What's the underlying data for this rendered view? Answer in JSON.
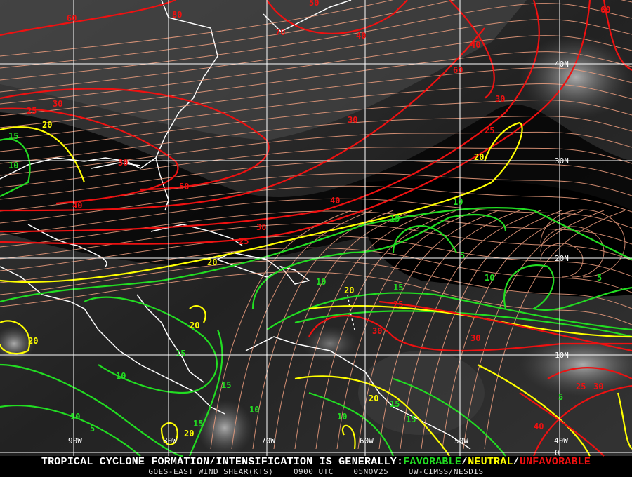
{
  "title_line": {
    "prefix": "TROPICAL CYCLONE FORMATION/INTENSIFICATION IS GENERALLY:",
    "favorable": "FAVORABLE",
    "sep1": "/",
    "neutral": "NEUTRAL",
    "sep2": "/",
    "unfavorable": "UNFAVORABLE"
  },
  "subtitle_line": {
    "product": "GOES-EAST WIND SHEAR(KTS)",
    "time": "0900 UTC",
    "date": "05NOV25",
    "credit": "UW-CIMSS/NESDIS"
  },
  "longitude_labels": [
    "90W",
    "80W",
    "70W",
    "60W",
    "50W",
    "40W"
  ],
  "latitude_labels": [
    "40N",
    "30N",
    "20N",
    "10N",
    "0"
  ],
  "colors": {
    "favorable": "#22dd22",
    "neutral": "#ffff00",
    "unfavorable": "#ee1111",
    "streamlines": "#f0a080",
    "coastline": "#ffffff",
    "grid": "#ffffff"
  },
  "contour_labels": [
    {
      "value": "80",
      "category": "unfavorable"
    },
    {
      "value": "60",
      "category": "unfavorable"
    },
    {
      "value": "70",
      "category": "unfavorable"
    },
    {
      "value": "40",
      "category": "unfavorable"
    },
    {
      "value": "40",
      "category": "unfavorable"
    },
    {
      "value": "50",
      "category": "unfavorable"
    },
    {
      "value": "60",
      "category": "unfavorable"
    },
    {
      "value": "60",
      "category": "unfavorable"
    },
    {
      "value": "30",
      "category": "unfavorable"
    },
    {
      "value": "25",
      "category": "unfavorable"
    },
    {
      "value": "20",
      "category": "neutral"
    },
    {
      "value": "15",
      "category": "favorable"
    },
    {
      "value": "10",
      "category": "favorable"
    },
    {
      "value": "30",
      "category": "unfavorable"
    },
    {
      "value": "50",
      "category": "unfavorable"
    },
    {
      "value": "40",
      "category": "unfavorable"
    },
    {
      "value": "40",
      "category": "unfavorable"
    },
    {
      "value": "30",
      "category": "unfavorable"
    },
    {
      "value": "25",
      "category": "unfavorable"
    },
    {
      "value": "20",
      "category": "neutral"
    },
    {
      "value": "30",
      "category": "unfavorable"
    },
    {
      "value": "30",
      "category": "unfavorable"
    },
    {
      "value": "25",
      "category": "unfavorable"
    },
    {
      "value": "20",
      "category": "neutral"
    },
    {
      "value": "10",
      "category": "favorable"
    },
    {
      "value": "15",
      "category": "favorable"
    },
    {
      "value": "5",
      "category": "favorable"
    },
    {
      "value": "10",
      "category": "favorable"
    },
    {
      "value": "5",
      "category": "favorable"
    },
    {
      "value": "10",
      "category": "favorable"
    },
    {
      "value": "20",
      "category": "neutral"
    },
    {
      "value": "15",
      "category": "favorable"
    },
    {
      "value": "25",
      "category": "unfavorable"
    },
    {
      "value": "30",
      "category": "unfavorable"
    },
    {
      "value": "30",
      "category": "unfavorable"
    },
    {
      "value": "5",
      "category": "favorable"
    },
    {
      "value": "20",
      "category": "neutral"
    },
    {
      "value": "20",
      "category": "neutral"
    },
    {
      "value": "10",
      "category": "favorable"
    },
    {
      "value": "15",
      "category": "favorable"
    },
    {
      "value": "15",
      "category": "favorable"
    },
    {
      "value": "10",
      "category": "favorable"
    },
    {
      "value": "15",
      "category": "favorable"
    },
    {
      "value": "20",
      "category": "neutral"
    },
    {
      "value": "15",
      "category": "favorable"
    },
    {
      "value": "10",
      "category": "favorable"
    },
    {
      "value": "15",
      "category": "favorable"
    },
    {
      "value": "10",
      "category": "favorable"
    },
    {
      "value": "5",
      "category": "favorable"
    },
    {
      "value": "20",
      "category": "neutral"
    },
    {
      "value": "25",
      "category": "unfavorable"
    },
    {
      "value": "30",
      "category": "unfavorable"
    },
    {
      "value": "40",
      "category": "unfavorable"
    }
  ]
}
